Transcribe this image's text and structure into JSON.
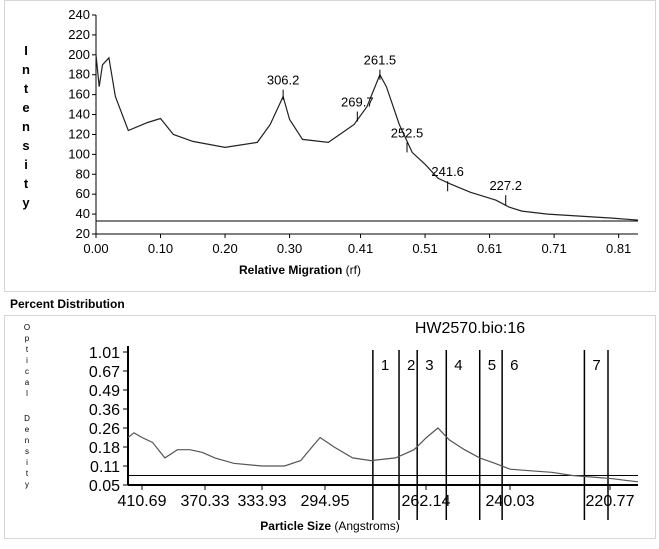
{
  "chart_data": [
    {
      "type": "line",
      "ylabel": "Intensity",
      "xlabel": "Relative Migration",
      "xlabel_unit": "(rf)",
      "yticks": [
        "240",
        "220",
        "200",
        "180",
        "160",
        "140",
        "120",
        "100",
        "80",
        "60",
        "40",
        "20"
      ],
      "xticks": [
        "0.00",
        "0.10",
        "0.20",
        "0.30",
        "0.41",
        "0.51",
        "0.61",
        "0.71",
        "0.81"
      ],
      "xlim": [
        0.0,
        0.84
      ],
      "ylim": [
        20,
        240
      ],
      "baseline": 33,
      "series": [
        {
          "x": [
            0.0,
            0.005,
            0.01,
            0.02,
            0.03,
            0.05,
            0.08,
            0.1,
            0.12,
            0.15,
            0.2,
            0.25,
            0.27,
            0.29,
            0.3,
            0.32,
            0.36,
            0.4,
            0.42,
            0.44,
            0.45,
            0.47,
            0.49,
            0.51,
            0.53,
            0.55,
            0.58,
            0.62,
            0.64,
            0.66,
            0.7,
            0.75,
            0.8,
            0.84
          ],
          "y": [
            200,
            168,
            190,
            197,
            158,
            124,
            132,
            136,
            120,
            113,
            107,
            112,
            130,
            158,
            135,
            115,
            112,
            130,
            148,
            180,
            168,
            130,
            102,
            90,
            76,
            70,
            62,
            54,
            47,
            43,
            40,
            38,
            36,
            34
          ]
        }
      ],
      "annotations": [
        {
          "label": "306.2",
          "x": 0.29,
          "y": 160
        },
        {
          "label": "269.7",
          "x": 0.405,
          "y": 138
        },
        {
          "label": "261.5",
          "x": 0.44,
          "y": 180
        },
        {
          "label": "252.5",
          "x": 0.482,
          "y": 107
        },
        {
          "label": "241.6",
          "x": 0.545,
          "y": 68
        },
        {
          "label": "227.2",
          "x": 0.635,
          "y": 54
        }
      ]
    },
    {
      "type": "line",
      "title": "HW2570.bio:16",
      "ylabel": "Optical Density",
      "xlabel": "Particle Size",
      "xlabel_unit": "(Angstroms)",
      "yticks": [
        "1.01",
        "0.67",
        "0.49",
        "0.36",
        "0.26",
        "0.18",
        "0.11",
        "0.05"
      ],
      "xticks": [
        "410.69",
        "370.33",
        "333.93",
        "294.95",
        "262.14",
        "240.03",
        "220.77"
      ],
      "baseline": 0.08,
      "series": [
        {
          "x": [
            420,
            416,
            410.69,
            404,
            396,
            388,
            380,
            372,
            364,
            352,
            334,
            320,
            310,
            303,
            298,
            292,
            286,
            280,
            272,
            266,
            262,
            259,
            256,
            252,
            248,
            244,
            240,
            236,
            232,
            228,
            224,
            220,
            216,
            212
          ],
          "y": [
            0.22,
            0.24,
            0.22,
            0.2,
            0.14,
            0.17,
            0.17,
            0.16,
            0.14,
            0.12,
            0.11,
            0.11,
            0.13,
            0.18,
            0.22,
            0.18,
            0.14,
            0.13,
            0.14,
            0.17,
            0.22,
            0.26,
            0.21,
            0.17,
            0.14,
            0.12,
            0.1,
            0.095,
            0.09,
            0.08,
            0.075,
            0.07,
            0.065,
            0.06
          ]
        }
      ],
      "fractions": [
        {
          "label": "1",
          "x": 279.4
        },
        {
          "label": "2",
          "x": 270.9
        },
        {
          "label": "3",
          "x": 265.0
        },
        {
          "label": "4",
          "x": 256.8
        },
        {
          "label": "5",
          "x": 248.0
        },
        {
          "label": "6",
          "x": 242.1
        },
        {
          "label": "7",
          "x": 225.7
        }
      ]
    }
  ],
  "section_title": "Percent Distribution"
}
